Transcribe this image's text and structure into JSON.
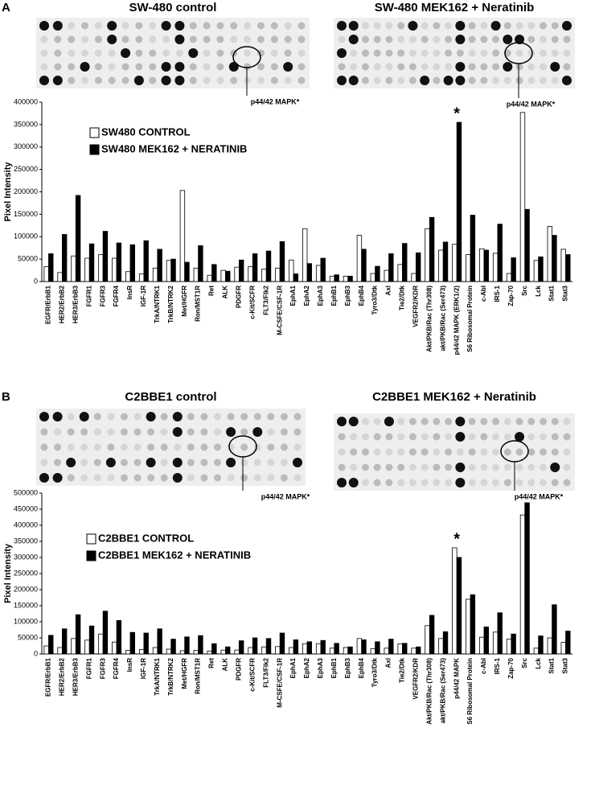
{
  "panels": [
    {
      "label": "A",
      "blots": [
        {
          "title": "SW-480 control",
          "annotation": "p44/42 MAPK*"
        },
        {
          "title": "SW-480 MEK162 + Neratinib",
          "annotation": "p44/42 MAPK*"
        }
      ]
    },
    {
      "label": "B",
      "blots": [
        {
          "title": "C2BBE1 control",
          "annotation": "p44/42 MAPK*"
        },
        {
          "title": "C2BBE1 MEK162 + Neratinib",
          "annotation": "p44/42 MAPK*"
        }
      ]
    }
  ],
  "chart_data": [
    {
      "type": "bar",
      "y_label": "Pixel Intensity",
      "categories": [
        "EGFR/ErbB1",
        "HER2/ErbB2",
        "HER3/ErbB3",
        "FGFR1",
        "FGFR3",
        "FGFR4",
        "InsR",
        "IGF-1R",
        "TrkA/NTRK1",
        "TrkB/NTRK2",
        "Met/HGFR",
        "Ron/MST1R",
        "Ret",
        "ALK",
        "PDGFR",
        "c-Kit/SCFR",
        "FLT3/Flk2",
        "M-CSFE/CSF-1R",
        "EphA1",
        "EphA2",
        "EphA3",
        "EphB1",
        "EphB3",
        "EphB4",
        "Tyro3/Dtk",
        "Axl",
        "Tie2/Dtk",
        "VEGFR2/KDR",
        "Akt/PKB/Rac (Thr308)",
        "akt/PKB/Rac (Ser473)",
        "p44/42 MAPK (ERK1/2)",
        "S6 Ribosomal Protein",
        "c-Abl",
        "IRS-1",
        "Zap-70",
        "Src",
        "Lck",
        "Stat1",
        "Stat3"
      ],
      "series": [
        {
          "name": "SW480 CONTROL",
          "color": "#ffffff",
          "values": [
            33000,
            20000,
            57000,
            52000,
            60000,
            52000,
            22000,
            17000,
            30000,
            47000,
            203000,
            30000,
            14000,
            25000,
            32000,
            33000,
            28000,
            30000,
            48000,
            118000,
            36000,
            12000,
            12000,
            103000,
            18000,
            25000,
            38000,
            18000,
            118000,
            70000,
            83000,
            60000,
            73000,
            63000,
            18000,
            377000,
            47000,
            123000,
            72000
          ]
        },
        {
          "name": "SW480 MEK162 + NERATINIB",
          "color": "#000000",
          "values": [
            62000,
            105000,
            192000,
            84000,
            112000,
            86000,
            82000,
            91000,
            72000,
            50000,
            43000,
            80000,
            38000,
            23000,
            48000,
            62000,
            68000,
            89000,
            17000,
            40000,
            52000,
            15000,
            12000,
            72000,
            34000,
            62000,
            85000,
            64000,
            143000,
            88000,
            355000,
            148000,
            70000,
            128000,
            53000,
            161000,
            55000,
            103000,
            60000
          ]
        }
      ],
      "ylim": [
        0,
        400000
      ],
      "yticks": [
        0,
        50000,
        100000,
        150000,
        200000,
        250000,
        300000,
        350000,
        400000
      ],
      "annotation": {
        "text": "*",
        "category": "p44/42 MAPK (ERK1/2)"
      }
    },
    {
      "type": "bar",
      "y_label": "Pixel Intensity",
      "categories": [
        "EGFR/ErbB1",
        "HER2/ErbB2",
        "HER3/ErbB3",
        "FGFR1",
        "FGFR3",
        "FGFR4",
        "InsR",
        "IGF-1R",
        "TrkA/NTRK1",
        "TrkB/NTRK2",
        "Met/HGFR",
        "Ron/MST1R",
        "Ret",
        "ALK",
        "PDGFR",
        "c-Kit/SCFR",
        "FLT3/Flk2",
        "M-CSFE/CSF-1R",
        "EphA1",
        "EphA2",
        "EphA3",
        "EphB1",
        "EphB3",
        "EphB4",
        "Tyro3/Dtk",
        "Axl",
        "Tie2/Dtk",
        "VEGFR2/KDR",
        "Akt/PKB/Rac (Thr308)",
        "akt/PKB/Rac (Ser473)",
        "p44/42 MAPK",
        "S6 Ribosomal Protein",
        "c-Abl",
        "IRS-1",
        "Zap-70",
        "Src",
        "Lck",
        "Stat1",
        "Stat3"
      ],
      "series": [
        {
          "name": "C2BBE1 CONTROL",
          "color": "#ffffff",
          "values": [
            25000,
            20000,
            48000,
            43000,
            62000,
            37000,
            11000,
            14000,
            20000,
            15000,
            10000,
            11000,
            9000,
            12000,
            12000,
            20000,
            22000,
            23000,
            20000,
            32000,
            32000,
            18000,
            20000,
            48000,
            16000,
            18000,
            31000,
            18000,
            88000,
            48000,
            330000,
            170000,
            52000,
            68000,
            46000,
            432000,
            18000,
            50000,
            36000
          ]
        },
        {
          "name": "C2BBE1 MEK162 + NERATINIB",
          "color": "#000000",
          "values": [
            58000,
            78000,
            122000,
            87000,
            133000,
            104000,
            67000,
            65000,
            78000,
            46000,
            53000,
            57000,
            32000,
            22000,
            41000,
            50000,
            48000,
            65000,
            44000,
            38000,
            42000,
            33000,
            22000,
            44000,
            38000,
            46000,
            33000,
            22000,
            120000,
            69000,
            300000,
            184000,
            84000,
            128000,
            62000,
            470000,
            56000,
            153000,
            71000
          ]
        }
      ],
      "ylim": [
        0,
        500000
      ],
      "yticks": [
        0,
        50000,
        100000,
        150000,
        200000,
        250000,
        300000,
        350000,
        400000,
        450000,
        500000
      ],
      "annotation": {
        "text": "*",
        "category": "p44/42 MAPK"
      }
    }
  ]
}
